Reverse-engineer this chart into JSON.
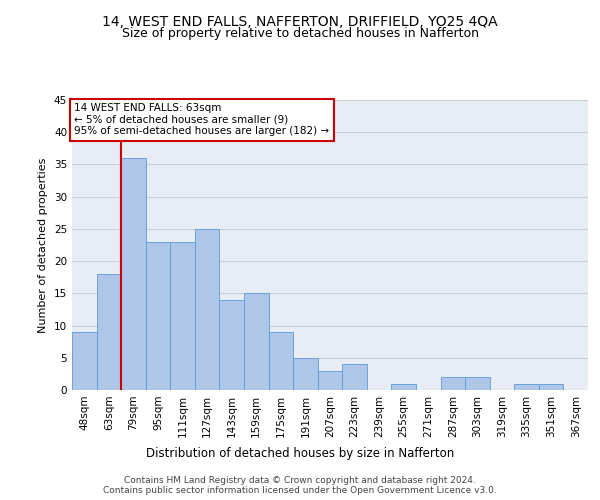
{
  "title": "14, WEST END FALLS, NAFFERTON, DRIFFIELD, YO25 4QA",
  "subtitle": "Size of property relative to detached houses in Nafferton",
  "xlabel": "Distribution of detached houses by size in Nafferton",
  "ylabel": "Number of detached properties",
  "categories": [
    "48sqm",
    "63sqm",
    "79sqm",
    "95sqm",
    "111sqm",
    "127sqm",
    "143sqm",
    "159sqm",
    "175sqm",
    "191sqm",
    "207sqm",
    "223sqm",
    "239sqm",
    "255sqm",
    "271sqm",
    "287sqm",
    "303sqm",
    "319sqm",
    "335sqm",
    "351sqm",
    "367sqm"
  ],
  "values": [
    9,
    18,
    36,
    23,
    23,
    25,
    14,
    15,
    9,
    5,
    3,
    4,
    0,
    1,
    0,
    2,
    2,
    0,
    1,
    1,
    0
  ],
  "bar_color": "#aec6e8",
  "bar_edge_color": "#5b9bd5",
  "annotation_line1": "14 WEST END FALLS: 63sqm",
  "annotation_line2": "← 5% of detached houses are smaller (9)",
  "annotation_line3": "95% of semi-detached houses are larger (182) →",
  "annotation_box_color": "#ffffff",
  "annotation_box_edge_color": "#cc0000",
  "annotation_text_fontsize": 7.5,
  "vline_color": "#cc0000",
  "vline_x": 1.5,
  "ylim": [
    0,
    45
  ],
  "yticks": [
    0,
    5,
    10,
    15,
    20,
    25,
    30,
    35,
    40,
    45
  ],
  "grid_color": "#c8cdd8",
  "bg_color": "#e8ecf5",
  "title_fontsize": 10,
  "subtitle_fontsize": 9,
  "xlabel_fontsize": 8.5,
  "ylabel_fontsize": 8,
  "tick_fontsize": 7.5,
  "footer_line1": "Contains HM Land Registry data © Crown copyright and database right 2024.",
  "footer_line2": "Contains public sector information licensed under the Open Government Licence v3.0.",
  "footer_fontsize": 6.5
}
